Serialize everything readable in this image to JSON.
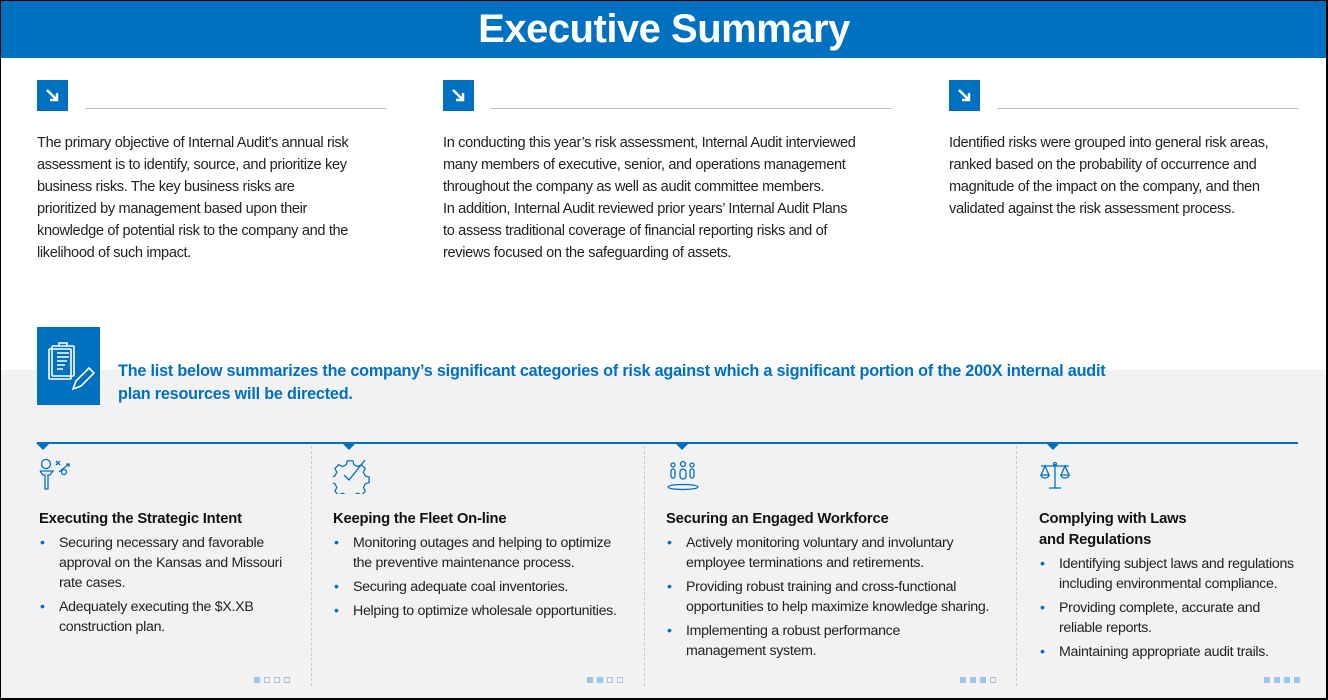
{
  "title": "Executive Summary",
  "intro": [
    {
      "lines": [
        "The primary objective of Internal Audit’s annual risk",
        "assessment is to identify, source, and prioritize key",
        "business risks.  The key business risks are",
        "prioritized by management based upon their",
        "knowledge of potential risk to the company and the",
        "likelihood of such impact."
      ]
    },
    {
      "lines": [
        "In conducting this year’s risk assessment, Internal Audit interviewed",
        "many members of executive, senior, and operations management",
        "throughout the company as well as audit committee members.",
        "In addition, Internal Audit reviewed prior years’ Internal Audit Plans",
        "to assess traditional coverage of financial reporting risks and of",
        "reviews focused on the safeguarding of assets."
      ]
    },
    {
      "lines": [
        "Identified risks were grouped into general risk areas,",
        "ranked based on the probability of occurrence and",
        "magnitude of the impact on the company, and then",
        "validated against the risk assessment process."
      ]
    }
  ],
  "headline": [
    "The list below summarizes the company’s significant categories of risk against which a significant portion of the 200X internal audit",
    "plan resources will be directed."
  ],
  "categories": [
    {
      "icon": "strategy-icon",
      "title": [
        "Executing the Strategic Intent"
      ],
      "bullets": [
        [
          "Securing necessary and favorable",
          "approval on the Kansas and Missouri",
          "rate cases."
        ],
        [
          "Adequately executing the $X.XB",
          "construction plan."
        ]
      ],
      "page": 1
    },
    {
      "icon": "gear-check-icon",
      "title": [
        "Keeping the Fleet On-line"
      ],
      "bullets": [
        [
          "Monitoring outages and helping to optimize",
          "the preventive maintenance process."
        ],
        [
          "Securing adequate coal inventories."
        ],
        [
          "Helping to optimize wholesale opportunities."
        ]
      ],
      "page": 2
    },
    {
      "icon": "people-icon",
      "title": [
        "Securing an Engaged Workforce"
      ],
      "bullets": [
        [
          "Actively monitoring voluntary and involuntary",
          "employee terminations and retirements."
        ],
        [
          "Providing robust training and cross-functional",
          "opportunities to help maximize knowledge sharing."
        ],
        [
          "Implementing a robust performance",
          "management system."
        ]
      ],
      "page": 3
    },
    {
      "icon": "scales-icon",
      "title": [
        "Complying with Laws",
        "and Regulations"
      ],
      "bullets": [
        [
          "Identifying subject laws and regulations",
          "including environmental compliance."
        ],
        [
          "Providing complete, accurate and",
          "reliable reports."
        ],
        [
          "Maintaining appropriate audit trails."
        ]
      ],
      "page": 4
    }
  ],
  "page_total": 4,
  "accent": "#0070c0"
}
